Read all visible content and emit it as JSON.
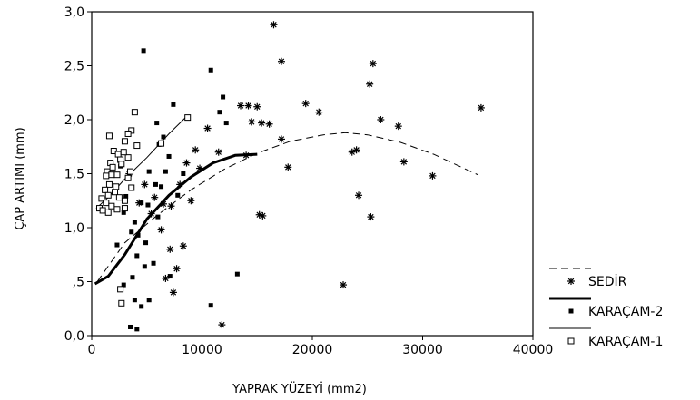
{
  "chart_data": {
    "type": "scatter",
    "title": "",
    "xlabel": "YAPRAK YÜZEYİ (mm2)",
    "ylabel": "ÇAP ARTIMI (mm)",
    "xlim": [
      0,
      40000
    ],
    "ylim": [
      0,
      3
    ],
    "x_ticks": [
      "0",
      "10000",
      "20000",
      "30000",
      "40000"
    ],
    "y_ticks": [
      "0,0",
      ",5",
      "1,0",
      "1,5",
      "2,0",
      "2,5",
      "3,0"
    ],
    "grid": false,
    "legend_position": "right",
    "series": [
      {
        "name": "SEDİR",
        "marker": "asterisk",
        "fit_line": "dashed",
        "points": [
          [
            16500,
            2.88
          ],
          [
            17200,
            2.54
          ],
          [
            25500,
            2.52
          ],
          [
            25200,
            2.33
          ],
          [
            13500,
            2.13
          ],
          [
            14200,
            2.13
          ],
          [
            15000,
            2.12
          ],
          [
            14500,
            1.98
          ],
          [
            15400,
            1.97
          ],
          [
            16100,
            1.96
          ],
          [
            19400,
            2.15
          ],
          [
            20600,
            2.07
          ],
          [
            26200,
            2.0
          ],
          [
            27800,
            1.94
          ],
          [
            35300,
            2.11
          ],
          [
            17200,
            1.82
          ],
          [
            24000,
            1.72
          ],
          [
            23600,
            1.7
          ],
          [
            28300,
            1.61
          ],
          [
            30900,
            1.48
          ],
          [
            17800,
            1.56
          ],
          [
            14000,
            1.67
          ],
          [
            24200,
            1.3
          ],
          [
            25300,
            1.1
          ],
          [
            15200,
            1.12
          ],
          [
            15500,
            1.11
          ],
          [
            22800,
            0.47
          ],
          [
            11800,
            0.1
          ],
          [
            6500,
            1.22
          ],
          [
            7200,
            1.2
          ],
          [
            8000,
            1.4
          ],
          [
            9000,
            1.25
          ],
          [
            8600,
            1.6
          ],
          [
            9400,
            1.72
          ],
          [
            6300,
            0.98
          ],
          [
            7100,
            0.8
          ],
          [
            8300,
            0.83
          ],
          [
            7700,
            0.62
          ],
          [
            6700,
            0.53
          ],
          [
            7400,
            0.4
          ],
          [
            4300,
            1.23
          ],
          [
            5400,
            1.13
          ],
          [
            10500,
            1.92
          ],
          [
            11500,
            1.7
          ],
          [
            3400,
            1.5
          ],
          [
            4800,
            1.4
          ],
          [
            5700,
            1.28
          ],
          [
            9800,
            1.55
          ]
        ],
        "fit": [
          [
            500,
            0.5
          ],
          [
            3000,
            0.86
          ],
          [
            6000,
            1.12
          ],
          [
            9000,
            1.35
          ],
          [
            12000,
            1.54
          ],
          [
            15000,
            1.69
          ],
          [
            18000,
            1.8
          ],
          [
            21000,
            1.86
          ],
          [
            23000,
            1.88
          ],
          [
            25000,
            1.86
          ],
          [
            28000,
            1.79
          ],
          [
            31000,
            1.68
          ],
          [
            35000,
            1.49
          ]
        ]
      },
      {
        "name": "KARAÇAM-2",
        "marker": "filled-square",
        "fit_line": "solid-thick",
        "points": [
          [
            4700,
            2.64
          ],
          [
            10800,
            2.46
          ],
          [
            11900,
            2.21
          ],
          [
            7400,
            2.14
          ],
          [
            12200,
            1.97
          ],
          [
            11600,
            2.07
          ],
          [
            5900,
            1.97
          ],
          [
            6500,
            1.84
          ],
          [
            6100,
            1.77
          ],
          [
            7000,
            1.66
          ],
          [
            5200,
            1.52
          ],
          [
            6700,
            1.52
          ],
          [
            8300,
            1.5
          ],
          [
            7800,
            1.3
          ],
          [
            6300,
            1.38
          ],
          [
            4500,
            1.23
          ],
          [
            5100,
            1.21
          ],
          [
            6000,
            1.1
          ],
          [
            3900,
            1.05
          ],
          [
            4200,
            0.93
          ],
          [
            4900,
            0.86
          ],
          [
            4100,
            0.74
          ],
          [
            5600,
            0.67
          ],
          [
            4800,
            0.64
          ],
          [
            13200,
            0.57
          ],
          [
            7100,
            0.55
          ],
          [
            10800,
            0.28
          ],
          [
            3900,
            0.33
          ],
          [
            4500,
            0.27
          ],
          [
            3500,
            0.08
          ],
          [
            4100,
            0.06
          ],
          [
            2600,
            1.57
          ],
          [
            3100,
            1.29
          ],
          [
            2900,
            1.14
          ],
          [
            3600,
            0.96
          ],
          [
            2300,
            0.84
          ],
          [
            3700,
            0.54
          ],
          [
            2900,
            0.47
          ],
          [
            5200,
            0.33
          ],
          [
            5800,
            1.4
          ]
        ],
        "fit": [
          [
            300,
            0.48
          ],
          [
            1500,
            0.55
          ],
          [
            3000,
            0.75
          ],
          [
            5000,
            1.08
          ],
          [
            7000,
            1.3
          ],
          [
            9000,
            1.47
          ],
          [
            11000,
            1.6
          ],
          [
            13000,
            1.67
          ],
          [
            15000,
            1.68
          ]
        ]
      },
      {
        "name": "KARAÇAM-1",
        "marker": "hollow-square",
        "fit_line": "solid-thin",
        "points": [
          [
            3900,
            2.07
          ],
          [
            3600,
            1.9
          ],
          [
            3300,
            1.87
          ],
          [
            1600,
            1.85
          ],
          [
            3000,
            1.8
          ],
          [
            4100,
            1.76
          ],
          [
            2000,
            1.71
          ],
          [
            2400,
            1.68
          ],
          [
            3300,
            1.65
          ],
          [
            2600,
            1.63
          ],
          [
            1700,
            1.6
          ],
          [
            2700,
            1.59
          ],
          [
            1900,
            1.56
          ],
          [
            1400,
            1.52
          ],
          [
            2300,
            1.49
          ],
          [
            3300,
            1.46
          ],
          [
            1600,
            1.4
          ],
          [
            3600,
            1.37
          ],
          [
            1200,
            1.35
          ],
          [
            2100,
            1.33
          ],
          [
            1500,
            1.3
          ],
          [
            2500,
            1.28
          ],
          [
            900,
            1.27
          ],
          [
            3000,
            1.25
          ],
          [
            1300,
            1.23
          ],
          [
            1800,
            1.2
          ],
          [
            700,
            1.18
          ],
          [
            2300,
            1.17
          ],
          [
            1000,
            1.16
          ],
          [
            1500,
            1.14
          ],
          [
            3000,
            1.18
          ],
          [
            1800,
            1.49
          ],
          [
            2600,
            0.43
          ],
          [
            2700,
            0.3
          ],
          [
            2900,
            1.7
          ],
          [
            3500,
            1.52
          ],
          [
            6300,
            1.78
          ],
          [
            8700,
            2.02
          ],
          [
            2200,
            1.38
          ],
          [
            1300,
            1.48
          ]
        ],
        "fit": [
          [
            400,
            1.18
          ],
          [
            1500,
            1.28
          ],
          [
            3000,
            1.45
          ],
          [
            5000,
            1.65
          ],
          [
            7000,
            1.87
          ],
          [
            8500,
            2.02
          ]
        ]
      }
    ]
  }
}
